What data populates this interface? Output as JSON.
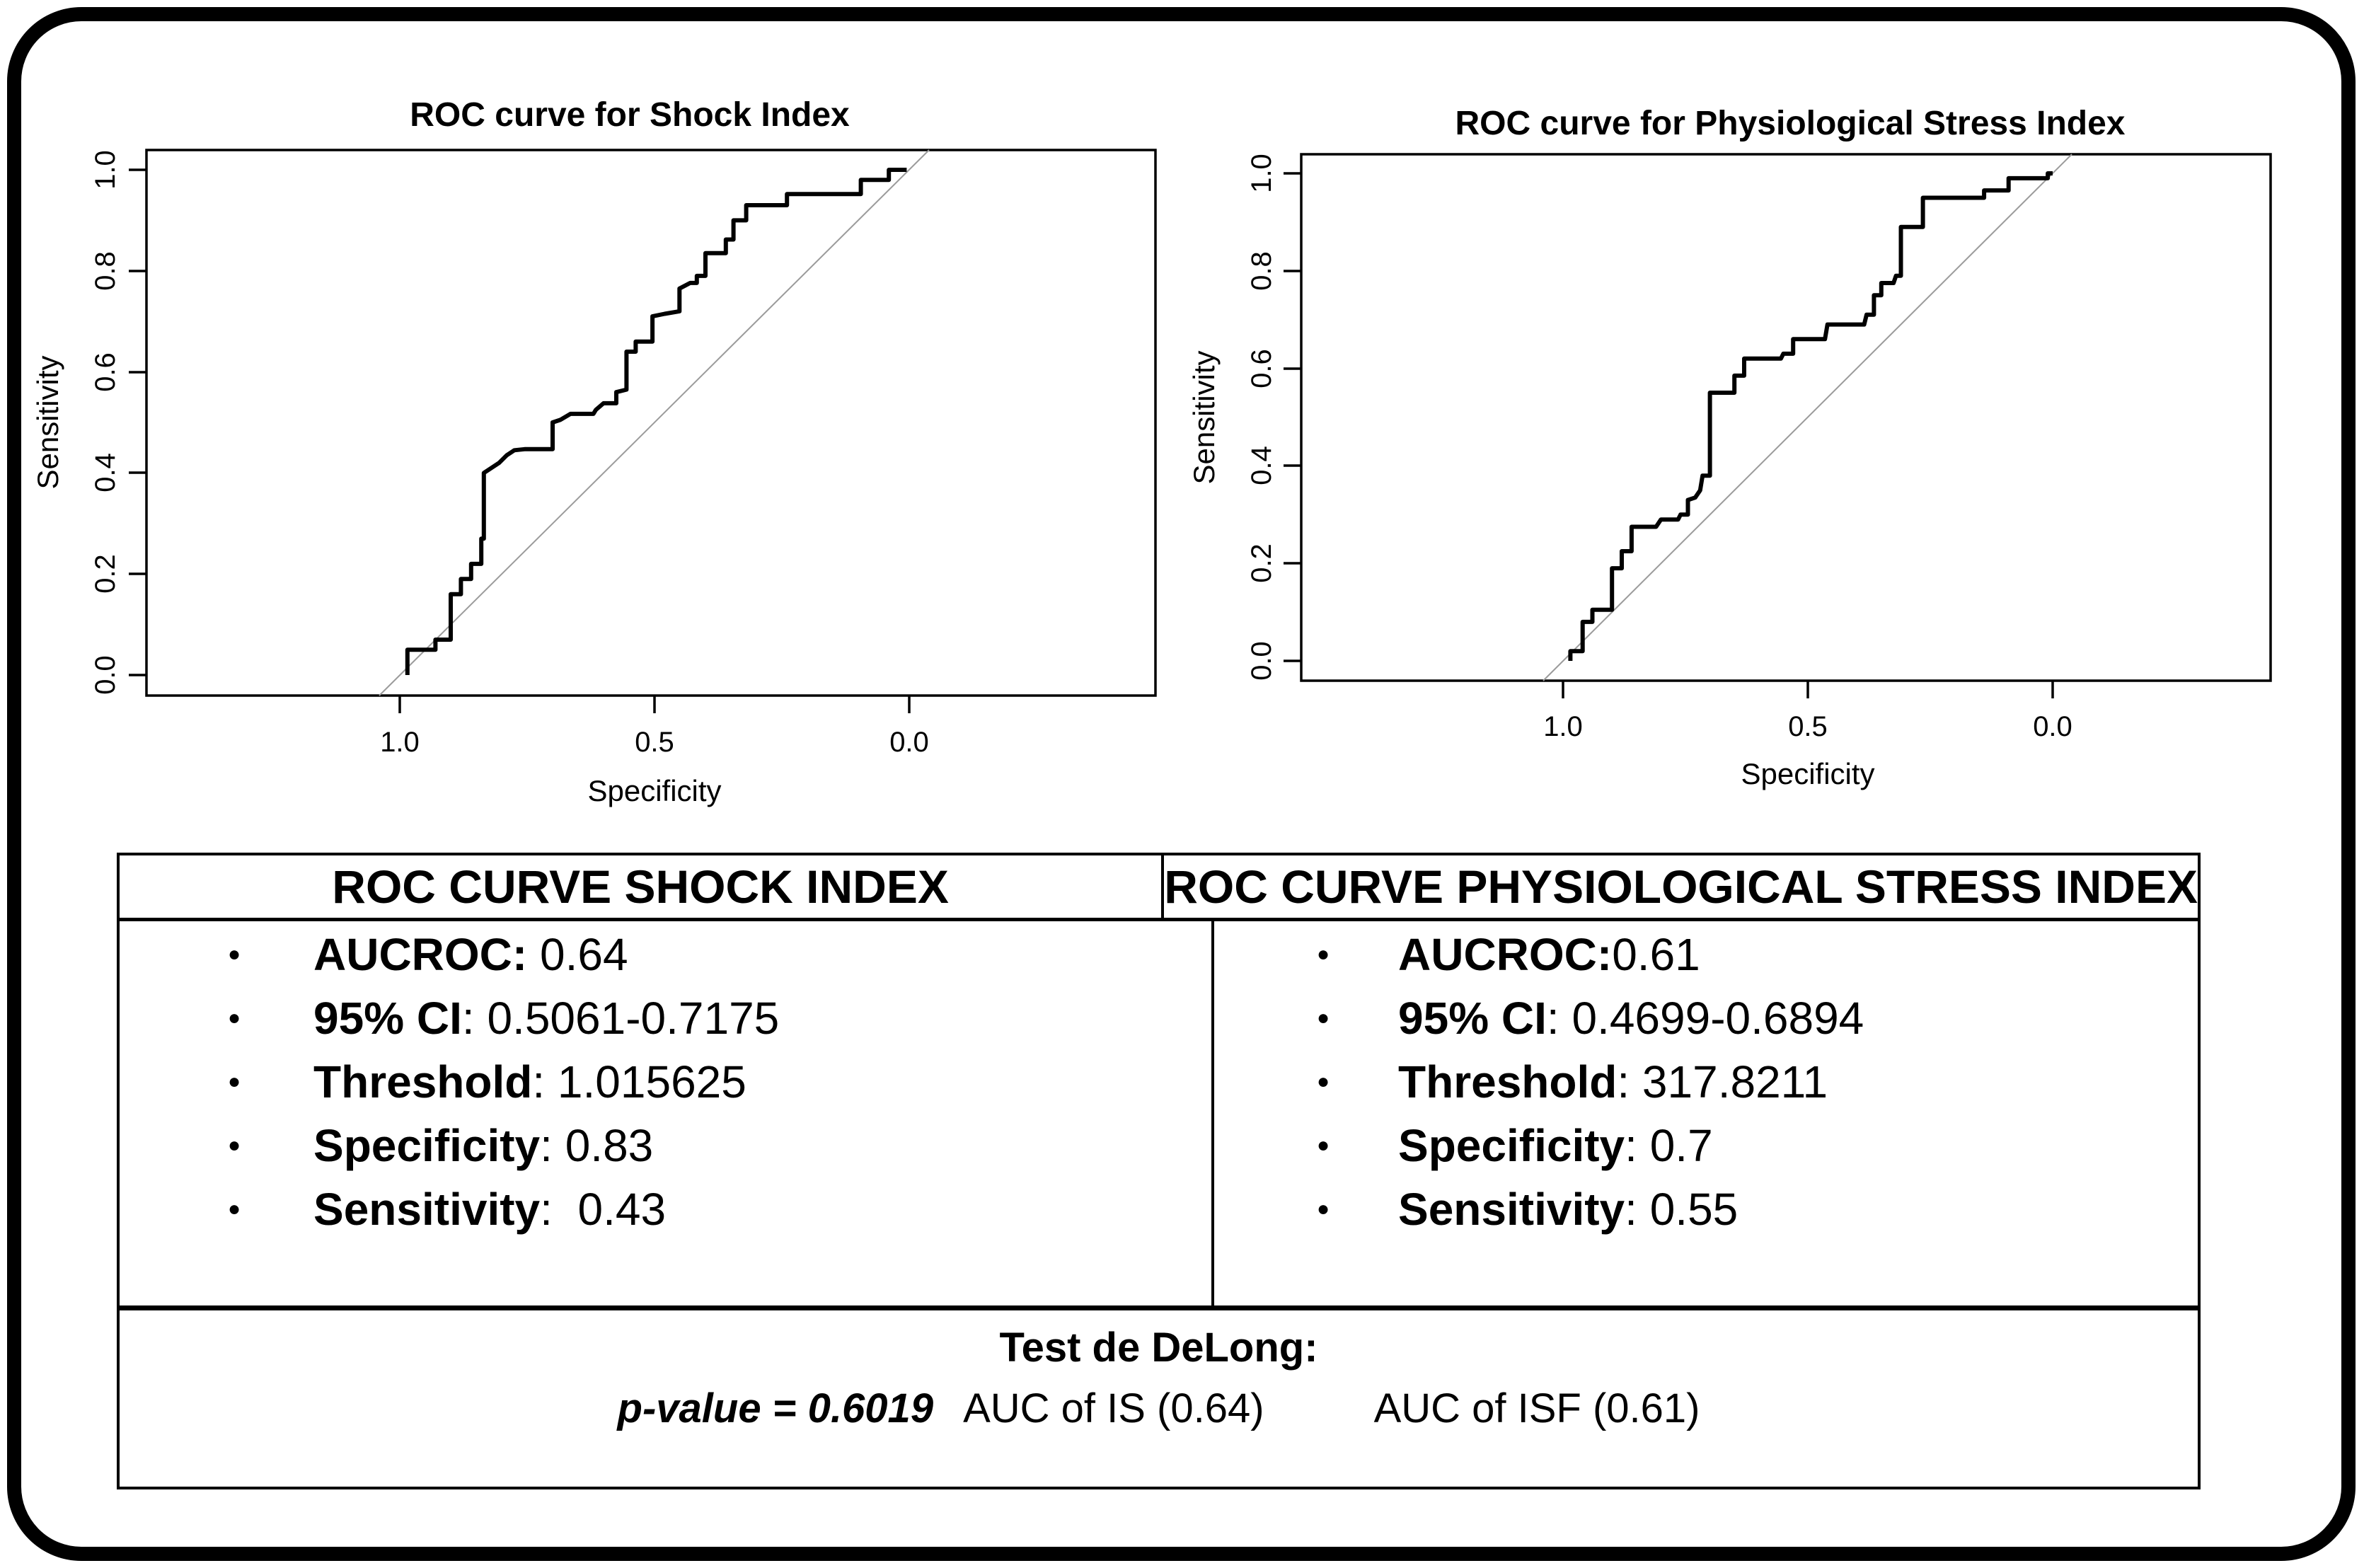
{
  "figure": {
    "description": "Comparison of ROC curves for Shock Index and Physiological Stress Index with summary statistics table",
    "colors": {
      "curve": "#000000",
      "reference_diagonal": "#9b9b9b",
      "border": "#000000",
      "background": "#ffffff"
    }
  },
  "chart_data": [
    {
      "type": "line",
      "title": "ROC curve for Shock Index",
      "xlabel": "Specificity",
      "ylabel": "Sensitivity",
      "x_tick_labels": [
        "1.0",
        "0.5",
        "0.0"
      ],
      "y_tick_labels": [
        "1.0",
        "0.8",
        "0.6",
        "0.4",
        "0.2",
        "0.0"
      ],
      "x_axis_reversed": true,
      "xlim": [
        1.5,
        -0.5
      ],
      "ylim": [
        -0.08,
        1.08
      ],
      "grid": false,
      "legend": "none",
      "reference_diagonal": true,
      "auc": 0.64,
      "roc_points": [
        [
          0.985,
          0.0
        ],
        [
          0.985,
          0.05
        ],
        [
          0.93,
          0.05
        ],
        [
          0.93,
          0.07
        ],
        [
          0.9,
          0.07
        ],
        [
          0.9,
          0.16
        ],
        [
          0.88,
          0.16
        ],
        [
          0.88,
          0.19
        ],
        [
          0.86,
          0.19
        ],
        [
          0.86,
          0.22
        ],
        [
          0.84,
          0.22
        ],
        [
          0.84,
          0.27
        ],
        [
          0.835,
          0.27
        ],
        [
          0.835,
          0.4
        ],
        [
          0.82,
          0.41
        ],
        [
          0.805,
          0.42
        ],
        [
          0.79,
          0.435
        ],
        [
          0.775,
          0.445
        ],
        [
          0.755,
          0.447
        ],
        [
          0.7,
          0.447
        ],
        [
          0.7,
          0.5
        ],
        [
          0.685,
          0.505
        ],
        [
          0.665,
          0.517
        ],
        [
          0.62,
          0.517
        ],
        [
          0.615,
          0.525
        ],
        [
          0.6,
          0.538
        ],
        [
          0.575,
          0.538
        ],
        [
          0.575,
          0.56
        ],
        [
          0.555,
          0.565
        ],
        [
          0.555,
          0.64
        ],
        [
          0.537,
          0.64
        ],
        [
          0.537,
          0.66
        ],
        [
          0.504,
          0.66
        ],
        [
          0.504,
          0.71
        ],
        [
          0.48,
          0.715
        ],
        [
          0.451,
          0.72
        ],
        [
          0.451,
          0.765
        ],
        [
          0.43,
          0.776
        ],
        [
          0.417,
          0.776
        ],
        [
          0.417,
          0.79
        ],
        [
          0.4,
          0.79
        ],
        [
          0.4,
          0.835
        ],
        [
          0.36,
          0.835
        ],
        [
          0.36,
          0.862
        ],
        [
          0.345,
          0.862
        ],
        [
          0.345,
          0.9
        ],
        [
          0.32,
          0.9
        ],
        [
          0.32,
          0.93
        ],
        [
          0.24,
          0.93
        ],
        [
          0.24,
          0.952
        ],
        [
          0.095,
          0.952
        ],
        [
          0.095,
          0.98
        ],
        [
          0.04,
          0.98
        ],
        [
          0.04,
          1.0
        ],
        [
          0.005,
          1.0
        ]
      ]
    },
    {
      "type": "line",
      "title": "ROC curve for Physiological Stress Index",
      "xlabel": "Specificity",
      "ylabel": "Sensitivity",
      "x_tick_labels": [
        "1.0",
        "0.5",
        "0.0"
      ],
      "y_tick_labels": [
        "1.0",
        "0.8",
        "0.6",
        "0.4",
        "0.2",
        "0.0"
      ],
      "x_axis_reversed": true,
      "xlim": [
        1.5,
        -0.5
      ],
      "ylim": [
        -0.08,
        1.08
      ],
      "grid": false,
      "legend": "none",
      "reference_diagonal": true,
      "auc": 0.61,
      "roc_points": [
        [
          0.985,
          0.0
        ],
        [
          0.985,
          0.02
        ],
        [
          0.96,
          0.02
        ],
        [
          0.96,
          0.08
        ],
        [
          0.94,
          0.08
        ],
        [
          0.94,
          0.105
        ],
        [
          0.9,
          0.105
        ],
        [
          0.9,
          0.19
        ],
        [
          0.88,
          0.19
        ],
        [
          0.88,
          0.225
        ],
        [
          0.86,
          0.225
        ],
        [
          0.86,
          0.275
        ],
        [
          0.81,
          0.275
        ],
        [
          0.8,
          0.29
        ],
        [
          0.765,
          0.29
        ],
        [
          0.76,
          0.3
        ],
        [
          0.745,
          0.3
        ],
        [
          0.745,
          0.33
        ],
        [
          0.73,
          0.335
        ],
        [
          0.72,
          0.35
        ],
        [
          0.715,
          0.38
        ],
        [
          0.7,
          0.38
        ],
        [
          0.7,
          0.55
        ],
        [
          0.65,
          0.55
        ],
        [
          0.65,
          0.585
        ],
        [
          0.63,
          0.585
        ],
        [
          0.63,
          0.62
        ],
        [
          0.555,
          0.62
        ],
        [
          0.55,
          0.63
        ],
        [
          0.53,
          0.63
        ],
        [
          0.53,
          0.66
        ],
        [
          0.465,
          0.66
        ],
        [
          0.46,
          0.69
        ],
        [
          0.385,
          0.69
        ],
        [
          0.38,
          0.71
        ],
        [
          0.365,
          0.71
        ],
        [
          0.365,
          0.75
        ],
        [
          0.35,
          0.75
        ],
        [
          0.35,
          0.775
        ],
        [
          0.325,
          0.775
        ],
        [
          0.32,
          0.79
        ],
        [
          0.31,
          0.79
        ],
        [
          0.31,
          0.89
        ],
        [
          0.265,
          0.89
        ],
        [
          0.265,
          0.95
        ],
        [
          0.14,
          0.95
        ],
        [
          0.14,
          0.965
        ],
        [
          0.09,
          0.965
        ],
        [
          0.09,
          0.99
        ],
        [
          0.01,
          0.99
        ],
        [
          0.01,
          1.0
        ],
        [
          0.0,
          1.0
        ]
      ]
    }
  ],
  "table": {
    "columns": [
      {
        "header": "ROC CURVE SHOCK INDEX",
        "items": [
          {
            "label": "AUCROC:",
            "value": " 0.64"
          },
          {
            "label": "95% CI",
            "value": ": 0.5061-0.7175"
          },
          {
            "label": "Threshold",
            "value": ": 1.015625"
          },
          {
            "label": "Specificity",
            "value": ": 0.83"
          },
          {
            "label": "Sensitivity",
            "value": ":  0.43"
          }
        ]
      },
      {
        "header": "ROC CURVE PHYSIOLOGICAL STRESS INDEX",
        "items": [
          {
            "label": "AUCROC:",
            "value": "0.61"
          },
          {
            "label": "95% CI",
            "value": ": 0.4699-0.6894"
          },
          {
            "label": "Threshold",
            "value": ": 317.8211"
          },
          {
            "label": "Specificity",
            "value": ": 0.7"
          },
          {
            "label": "Sensitivity",
            "value": ": 0.55"
          }
        ]
      }
    ],
    "footer": {
      "title": "Test de DeLong:",
      "p_value": "p-value = 0.6019",
      "auc_is": "AUC of IS (0.64)",
      "auc_isf": "AUC of ISF (0.61)"
    }
  }
}
